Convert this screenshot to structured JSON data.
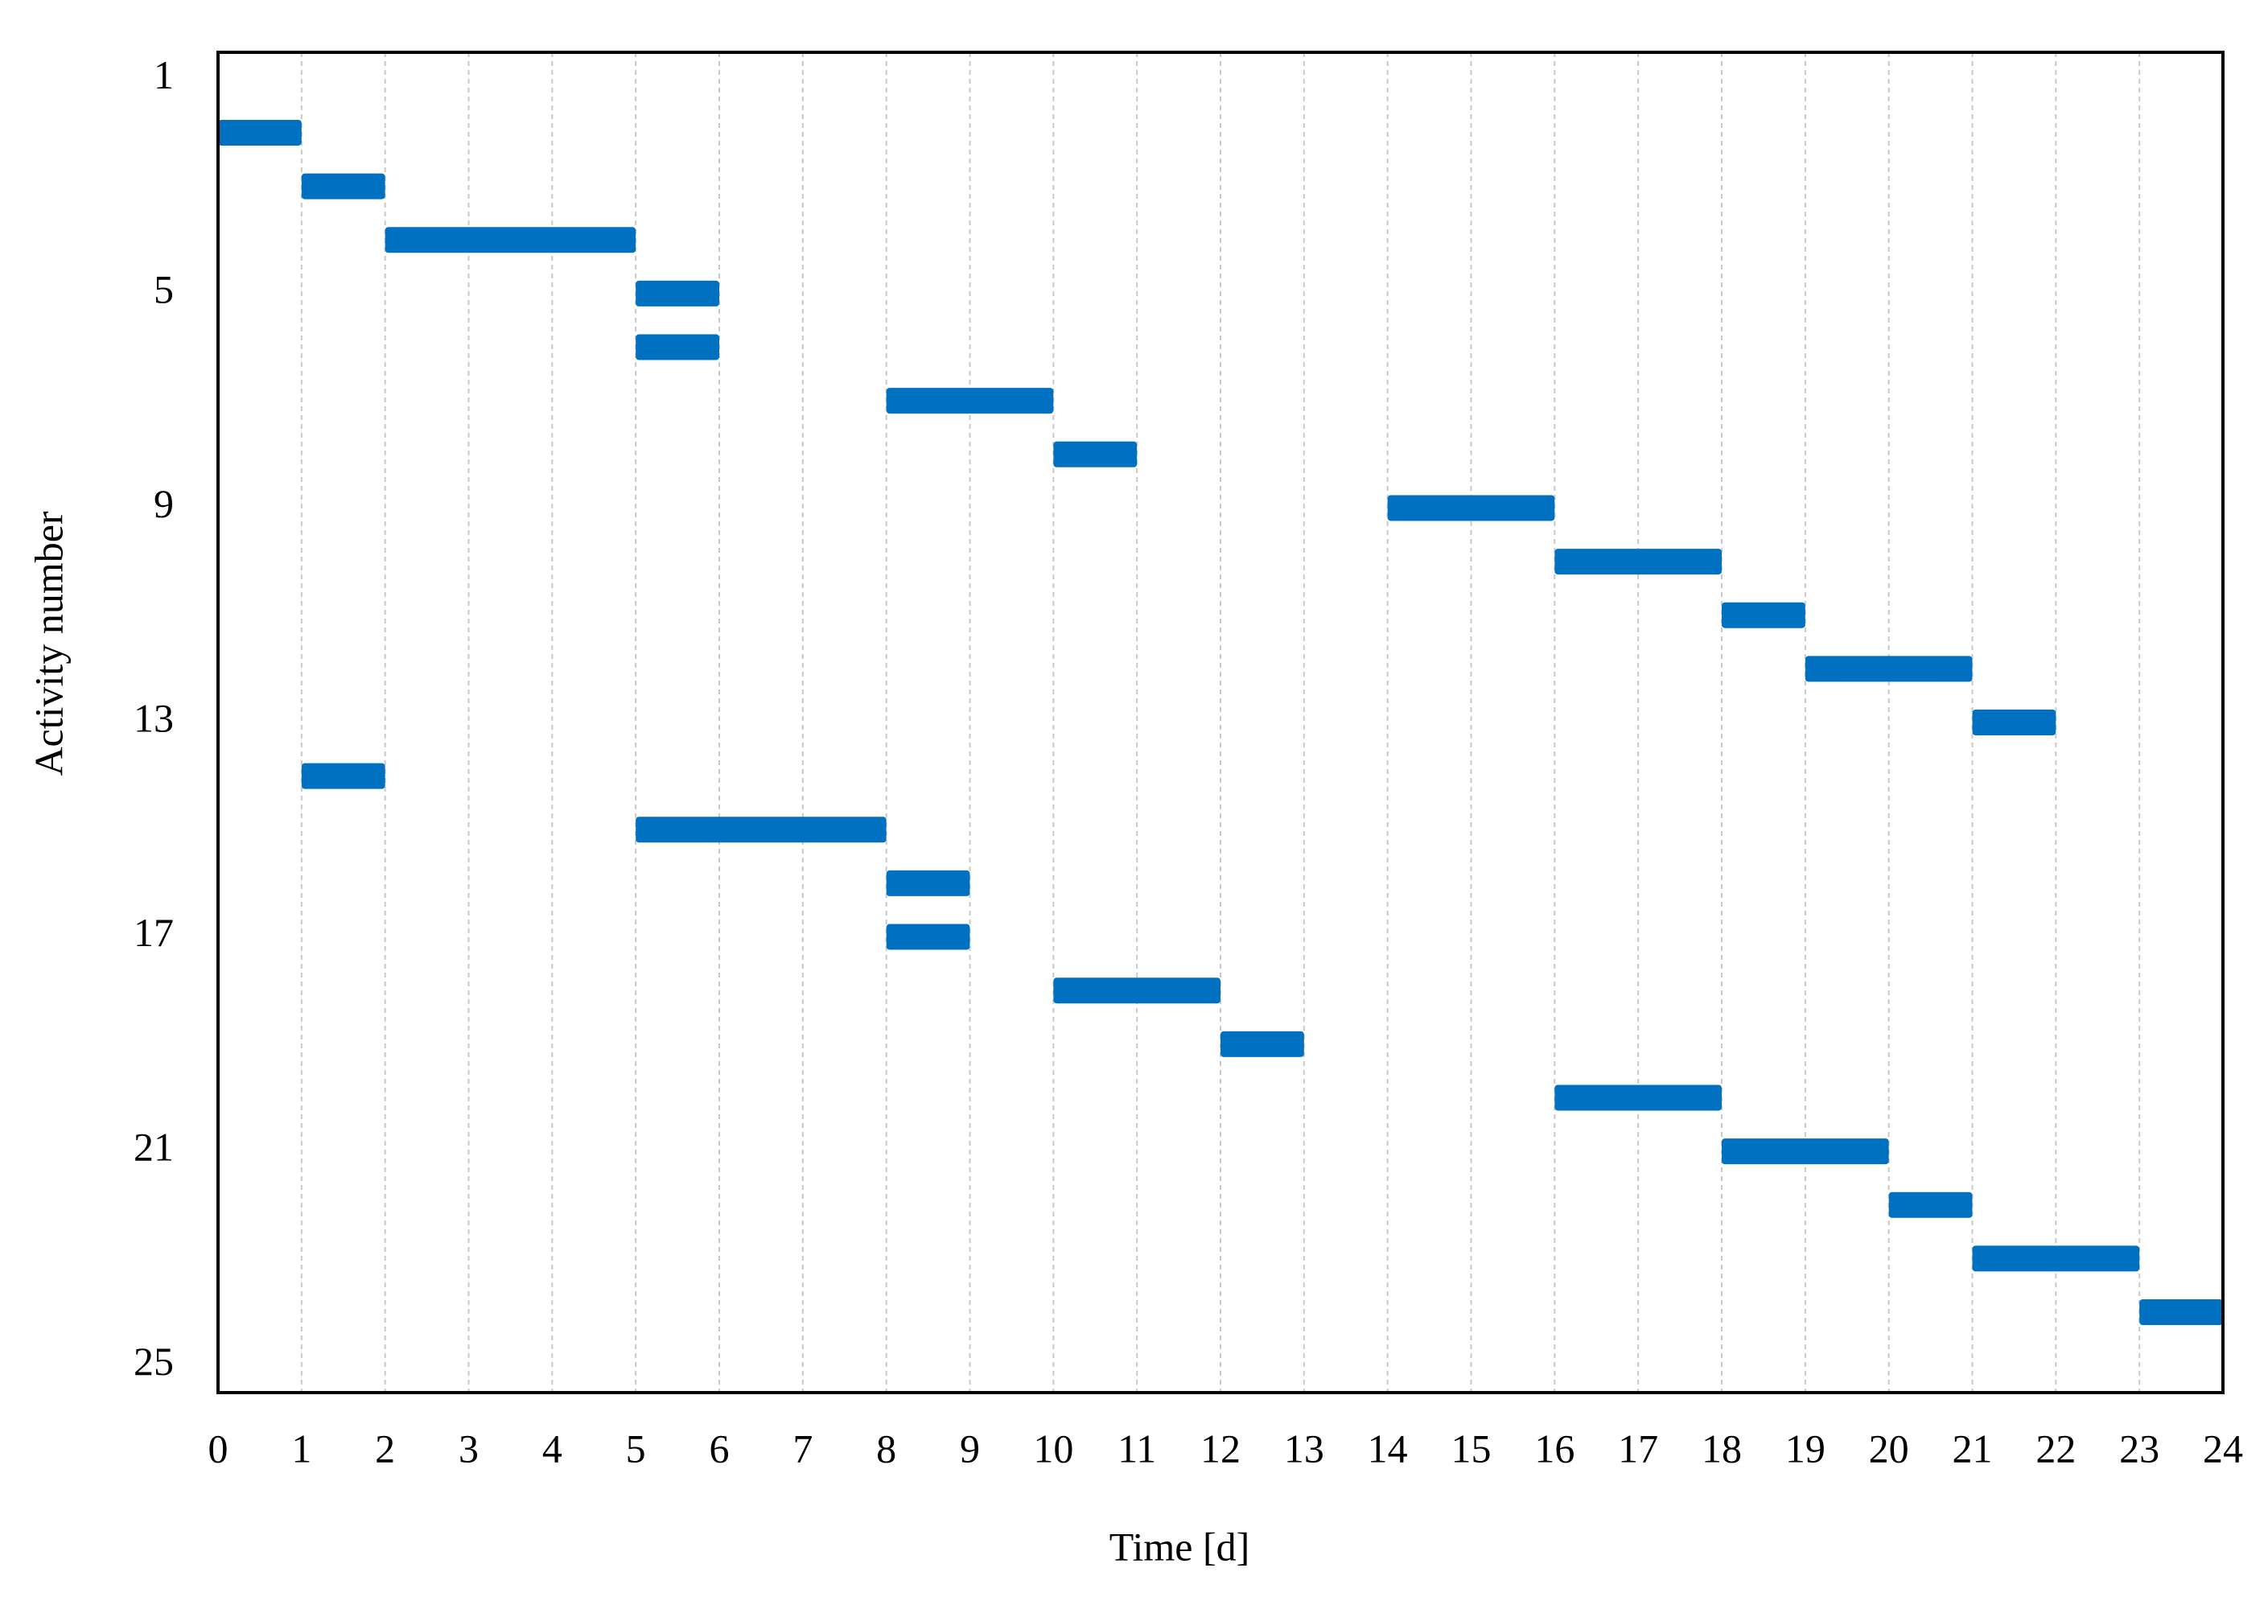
{
  "chart_data": {
    "type": "gantt",
    "x_label": "Time [d]",
    "y_label": "Activity number",
    "activities": [
      2,
      3,
      4,
      5,
      6,
      7,
      8,
      9,
      10,
      11,
      12,
      13,
      14,
      15,
      16,
      17,
      18,
      19,
      20,
      21,
      22,
      23,
      24
    ],
    "start": [
      0,
      1,
      2,
      5,
      5,
      8,
      10,
      14,
      16,
      18,
      19,
      21,
      1,
      5,
      8,
      8,
      10,
      12,
      16,
      18,
      20,
      21,
      23
    ],
    "end": [
      1,
      2,
      5,
      6,
      6,
      10,
      11,
      16,
      18,
      19,
      21,
      22,
      2,
      8,
      9,
      9,
      12,
      13,
      18,
      20,
      21,
      23,
      24
    ],
    "color": "#0070c0",
    "xlim": [
      0,
      24
    ],
    "xticks": [
      0,
      1,
      2,
      3,
      4,
      5,
      6,
      7,
      8,
      9,
      10,
      11,
      12,
      13,
      14,
      15,
      16,
      17,
      18,
      19,
      20,
      21,
      22,
      23,
      24
    ],
    "ylim": [
      25.5,
      0.5
    ],
    "yticks": [
      1,
      5,
      9,
      13,
      17,
      21,
      25
    ],
    "grid": true
  }
}
